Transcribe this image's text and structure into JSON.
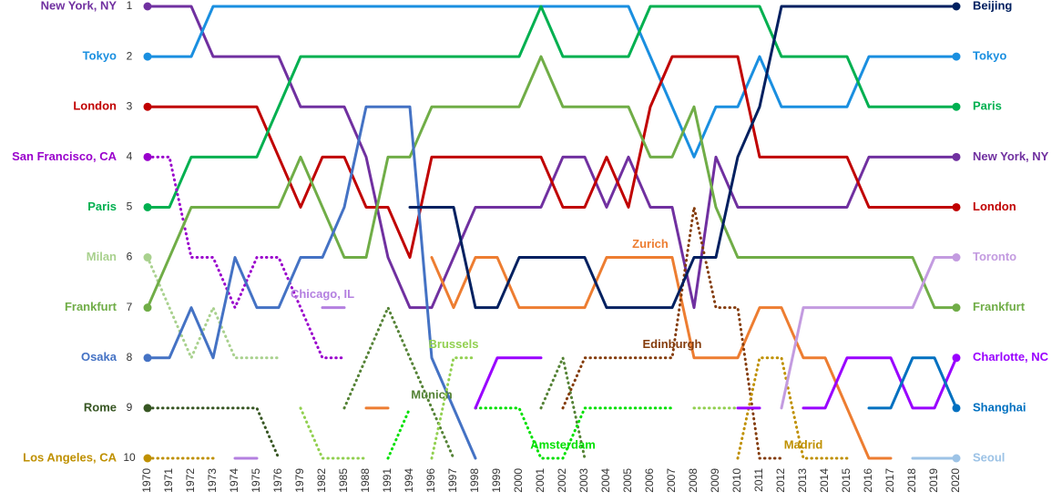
{
  "chart_data": {
    "type": "bump",
    "categories": [
      "1970",
      "1971",
      "1972",
      "1973",
      "1974",
      "1975",
      "1976",
      "1979",
      "1982",
      "1985",
      "1988",
      "1991",
      "1994",
      "1996",
      "1997",
      "1998",
      "1999",
      "2000",
      "2001",
      "2002",
      "2003",
      "2004",
      "2005",
      "2006",
      "2007",
      "2008",
      "2009",
      "2010",
      "2011",
      "2012",
      "2013",
      "2014",
      "2015",
      "2016",
      "2017",
      "2018",
      "2019",
      "2020"
    ],
    "ylim": [
      10,
      1
    ],
    "yticks": [
      1,
      2,
      3,
      4,
      5,
      6,
      7,
      8,
      9,
      10
    ],
    "series": [
      {
        "name": "New York, NY",
        "color": "#7030a0",
        "dash": "solid",
        "values": [
          1,
          1,
          1,
          2,
          2,
          2,
          2,
          3,
          3,
          3,
          4,
          6,
          7,
          7,
          6,
          5,
          5,
          5,
          5,
          4,
          4,
          5,
          4,
          5,
          5,
          7,
          4,
          5,
          5,
          5,
          5,
          5,
          5,
          4,
          4,
          4,
          4,
          4
        ]
      },
      {
        "name": "Tokyo",
        "color": "#1a8fe0",
        "dash": "solid",
        "values": [
          2,
          2,
          2,
          1,
          1,
          1,
          1,
          1,
          1,
          1,
          1,
          1,
          1,
          1,
          1,
          1,
          1,
          1,
          1,
          1,
          1,
          1,
          1,
          2,
          3,
          4,
          3,
          3,
          2,
          3,
          3,
          3,
          3,
          2,
          2,
          2,
          2,
          2
        ]
      },
      {
        "name": "London",
        "color": "#c00000",
        "dash": "solid",
        "values": [
          3,
          3,
          3,
          3,
          3,
          3,
          4,
          5,
          4,
          4,
          5,
          5,
          6,
          4,
          4,
          4,
          4,
          4,
          4,
          5,
          5,
          4,
          5,
          3,
          2,
          2,
          2,
          2,
          4,
          4,
          4,
          4,
          4,
          5,
          5,
          5,
          5,
          5
        ]
      },
      {
        "name": "Paris",
        "color": "#00b050",
        "dash": "solid",
        "values": [
          5,
          5,
          4,
          4,
          4,
          4,
          3,
          2,
          2,
          2,
          2,
          2,
          2,
          2,
          2,
          2,
          2,
          2,
          1,
          2,
          2,
          2,
          2,
          1,
          1,
          1,
          1,
          1,
          1,
          2,
          2,
          2,
          2,
          3,
          3,
          3,
          3,
          3
        ]
      },
      {
        "name": "San Francisco, CA",
        "color": "#9900cc",
        "dash": "dotted",
        "values": [
          4,
          4,
          6,
          6,
          7,
          6,
          6,
          7,
          8,
          8,
          null,
          null,
          null,
          null,
          null,
          null,
          null,
          null,
          null,
          null,
          null,
          null,
          null,
          null,
          null,
          null,
          null,
          null,
          null,
          null,
          null,
          null,
          null,
          null,
          null,
          null,
          null,
          null
        ]
      },
      {
        "name": "Milan",
        "color": "#a9d18e",
        "dash": "dotted",
        "values": [
          6,
          7,
          8,
          7,
          8,
          8,
          8,
          null,
          null,
          null,
          null,
          null,
          null,
          null,
          null,
          null,
          null,
          null,
          null,
          null,
          null,
          null,
          null,
          null,
          null,
          null,
          null,
          null,
          null,
          null,
          null,
          null,
          null,
          null,
          null,
          null,
          null,
          null
        ]
      },
      {
        "name": "Frankfurt",
        "color": "#70ad47",
        "dash": "solid",
        "values": [
          7,
          6,
          5,
          5,
          5,
          5,
          5,
          4,
          5,
          6,
          6,
          4,
          4,
          3,
          3,
          3,
          3,
          3,
          2,
          3,
          3,
          3,
          3,
          4,
          4,
          3,
          5,
          6,
          6,
          6,
          6,
          6,
          6,
          6,
          6,
          6,
          7,
          7
        ]
      },
      {
        "name": "Osaka",
        "color": "#4472c4",
        "dash": "solid",
        "values": [
          8,
          8,
          7,
          8,
          6,
          7,
          7,
          6,
          6,
          5,
          3,
          3,
          3,
          8,
          9,
          10,
          null,
          null,
          null,
          null,
          null,
          null,
          null,
          null,
          null,
          null,
          null,
          null,
          null,
          null,
          null,
          null,
          null,
          null,
          null,
          null,
          null,
          null
        ]
      },
      {
        "name": "Rome",
        "color": "#375623",
        "dash": "dotted",
        "values": [
          9,
          9,
          9,
          9,
          9,
          9,
          10,
          null,
          null,
          null,
          null,
          null,
          null,
          null,
          null,
          null,
          null,
          null,
          null,
          null,
          null,
          null,
          null,
          null,
          null,
          null,
          null,
          null,
          null,
          null,
          null,
          null,
          null,
          null,
          null,
          null,
          null,
          null
        ]
      },
      {
        "name": "Los Angeles, CA",
        "color": "#bf9000",
        "dash": "dotted",
        "values": [
          10,
          10,
          10,
          10,
          null,
          null,
          null,
          null,
          null,
          null,
          null,
          null,
          null,
          null,
          null,
          null,
          null,
          null,
          null,
          null,
          null,
          null,
          null,
          null,
          null,
          null,
          null,
          null,
          null,
          null,
          null,
          null,
          null,
          null,
          null,
          null,
          null,
          null
        ]
      },
      {
        "name": "Chicago, IL",
        "color": "#b480e0",
        "dash": "solid",
        "values": [
          null,
          null,
          null,
          null,
          10,
          10,
          null,
          null,
          7,
          7,
          null,
          null,
          null,
          null,
          null,
          null,
          null,
          null,
          null,
          null,
          null,
          null,
          null,
          null,
          null,
          null,
          null,
          null,
          null,
          null,
          null,
          null,
          null,
          null,
          null,
          null,
          null,
          null
        ]
      },
      {
        "name": "Munich",
        "color": "#548235",
        "dash": "dotted",
        "values": [
          null,
          null,
          null,
          null,
          null,
          null,
          null,
          null,
          null,
          9,
          8,
          7,
          8,
          9,
          10,
          null,
          null,
          null,
          9,
          8,
          10,
          null,
          null,
          null,
          null,
          null,
          null,
          null,
          null,
          null,
          null,
          null,
          null,
          null,
          null,
          null,
          null,
          null
        ]
      },
      {
        "name": "Brussels",
        "color": "#92d050",
        "dash": "dotted",
        "values": [
          null,
          null,
          null,
          null,
          null,
          null,
          null,
          9,
          10,
          10,
          10,
          null,
          null,
          10,
          8,
          8,
          null,
          null,
          null,
          null,
          null,
          null,
          null,
          null,
          null,
          9,
          9,
          9,
          null,
          null,
          null,
          null,
          null,
          null,
          null,
          null,
          null,
          null
        ]
      },
      {
        "name": "Amsterdam",
        "color": "#00e000",
        "dash": "dotted",
        "values": [
          null,
          null,
          null,
          null,
          null,
          null,
          null,
          null,
          null,
          null,
          null,
          10,
          9,
          null,
          null,
          9,
          9,
          9,
          10,
          10,
          9,
          9,
          9,
          9,
          9,
          null,
          null,
          null,
          null,
          null,
          null,
          null,
          null,
          null,
          null,
          null,
          null,
          null
        ]
      },
      {
        "name": "Zurich",
        "color": "#ed7d31",
        "dash": "solid",
        "values": [
          null,
          null,
          null,
          null,
          null,
          null,
          null,
          null,
          null,
          null,
          9,
          9,
          null,
          6,
          7,
          6,
          6,
          7,
          7,
          7,
          7,
          6,
          6,
          6,
          6,
          8,
          8,
          8,
          7,
          7,
          8,
          8,
          9,
          10,
          10,
          null,
          null,
          null
        ]
      },
      {
        "name": "Edinburgh",
        "color": "#843c0c",
        "dash": "dotted",
        "values": [
          null,
          null,
          null,
          null,
          null,
          null,
          null,
          null,
          null,
          null,
          null,
          null,
          null,
          null,
          null,
          null,
          null,
          null,
          null,
          9,
          8,
          8,
          8,
          8,
          8,
          5,
          7,
          7,
          10,
          10,
          null,
          null,
          null,
          null,
          null,
          null,
          null,
          null
        ]
      },
      {
        "name": "Madrid",
        "color": "#bf9000",
        "dash": "dotted",
        "values": [
          null,
          null,
          null,
          null,
          null,
          null,
          null,
          null,
          null,
          null,
          null,
          null,
          null,
          null,
          null,
          null,
          null,
          null,
          null,
          null,
          null,
          null,
          null,
          null,
          null,
          null,
          null,
          10,
          8,
          8,
          10,
          10,
          10,
          null,
          null,
          null,
          null,
          null
        ]
      },
      {
        "name": "Beijing",
        "color": "#002060",
        "dash": "solid",
        "values": [
          null,
          null,
          null,
          null,
          null,
          null,
          null,
          null,
          null,
          null,
          null,
          null,
          5,
          5,
          5,
          7,
          7,
          6,
          6,
          6,
          6,
          7,
          7,
          7,
          7,
          6,
          6,
          4,
          3,
          1,
          1,
          1,
          1,
          1,
          1,
          1,
          1,
          1
        ]
      },
      {
        "name": "Toronto",
        "color": "#c39be0",
        "dash": "solid",
        "values": [
          null,
          null,
          null,
          null,
          null,
          null,
          null,
          null,
          null,
          null,
          null,
          null,
          null,
          null,
          null,
          null,
          null,
          null,
          null,
          null,
          null,
          null,
          null,
          null,
          null,
          null,
          null,
          null,
          null,
          9,
          7,
          7,
          7,
          7,
          7,
          7,
          6,
          6
        ]
      },
      {
        "name": "Charlotte, NC",
        "color": "#9900ff",
        "dash": "solid",
        "values": [
          null,
          null,
          null,
          null,
          null,
          null,
          null,
          null,
          null,
          null,
          null,
          null,
          null,
          null,
          null,
          9,
          8,
          8,
          8,
          null,
          null,
          null,
          null,
          null,
          null,
          null,
          null,
          9,
          9,
          null,
          9,
          9,
          8,
          8,
          8,
          9,
          9,
          8
        ]
      },
      {
        "name": "Shanghai",
        "color": "#0070c0",
        "dash": "solid",
        "values": [
          null,
          null,
          null,
          null,
          null,
          null,
          null,
          null,
          null,
          null,
          null,
          null,
          null,
          null,
          null,
          null,
          null,
          null,
          null,
          null,
          null,
          null,
          null,
          null,
          null,
          null,
          null,
          null,
          null,
          null,
          null,
          null,
          null,
          9,
          9,
          8,
          8,
          9
        ]
      },
      {
        "name": "Seoul",
        "color": "#9dc3e6",
        "dash": "solid",
        "values": [
          null,
          null,
          null,
          null,
          null,
          null,
          null,
          null,
          null,
          null,
          null,
          null,
          null,
          null,
          null,
          null,
          null,
          null,
          null,
          null,
          null,
          null,
          null,
          null,
          null,
          null,
          null,
          null,
          null,
          null,
          null,
          null,
          null,
          null,
          null,
          10,
          10,
          10
        ]
      }
    ]
  }
}
